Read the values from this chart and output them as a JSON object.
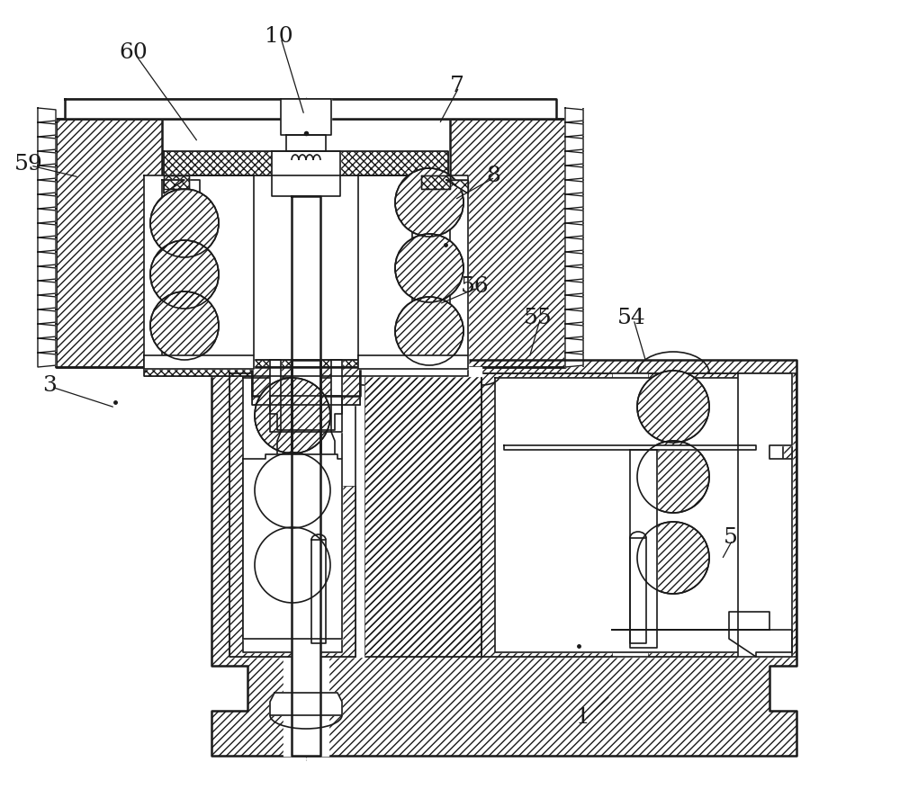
{
  "bg_color": "#ffffff",
  "line_color": "#1a1a1a",
  "figsize": [
    10.0,
    8.97
  ],
  "dpi": 100,
  "annotations": [
    [
      "60",
      148,
      58,
      220,
      158
    ],
    [
      "10",
      310,
      40,
      338,
      128
    ],
    [
      "7",
      508,
      95,
      488,
      138
    ],
    [
      "59",
      32,
      182,
      88,
      197
    ],
    [
      "8",
      548,
      195,
      505,
      222
    ],
    [
      "56",
      528,
      318,
      488,
      338
    ],
    [
      "55",
      598,
      353,
      588,
      398
    ],
    [
      "54",
      702,
      353,
      718,
      403
    ],
    [
      "3",
      55,
      428,
      128,
      453
    ],
    [
      "5",
      812,
      598,
      802,
      622
    ],
    [
      "1",
      648,
      798,
      678,
      773
    ]
  ]
}
